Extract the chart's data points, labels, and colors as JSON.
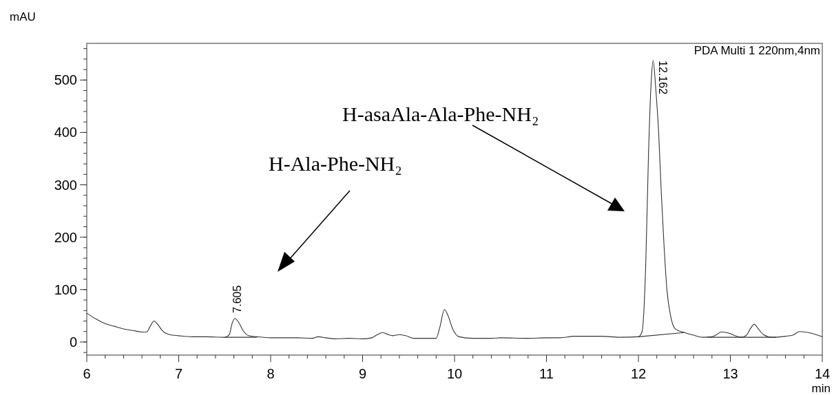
{
  "chart_data": {
    "type": "line",
    "xlabel": "min",
    "ylabel": "mAU",
    "xlim": [
      6,
      14
    ],
    "xticks": [
      6,
      7,
      8,
      9,
      10,
      11,
      12,
      13,
      14
    ],
    "ylim": [
      -25,
      570
    ],
    "yticks": [
      0,
      100,
      200,
      300,
      400,
      500
    ],
    "grid": false,
    "marker": "none",
    "line_style": "solid",
    "series": [
      {
        "color": "#333333",
        "x": [
          6,
          6.1,
          6.2,
          6.3,
          6.4,
          6.5,
          6.6,
          6.65,
          6.69,
          6.73,
          6.77,
          6.82,
          6.9,
          7.0,
          7.15,
          7.3,
          7.5,
          7.55,
          7.58,
          7.61,
          7.65,
          7.7,
          7.76,
          7.85,
          8.0,
          8.2,
          8.3,
          8.45,
          8.52,
          8.6,
          8.7,
          8.85,
          9.0,
          9.1,
          9.16,
          9.22,
          9.28,
          9.33,
          9.4,
          9.47,
          9.55,
          9.7,
          9.8,
          9.84,
          9.89,
          9.93,
          9.98,
          10.05,
          10.2,
          10.4,
          10.5,
          10.8,
          11.0,
          11.15,
          11.3,
          11.6,
          11.8,
          12.0,
          12.04,
          12.08,
          12.11,
          12.14,
          12.16,
          12.19,
          12.22,
          12.25,
          12.28,
          12.31,
          12.35,
          12.4,
          12.5,
          12.6,
          12.7,
          12.8,
          12.85,
          12.9,
          13.0,
          13.05,
          13.12,
          13.18,
          13.22,
          13.26,
          13.3,
          13.36,
          13.45,
          13.6,
          13.68,
          13.75,
          13.85,
          13.95,
          14.0
        ],
        "values": [
          55,
          44,
          35,
          30,
          25,
          22,
          19,
          19,
          30,
          40,
          34,
          22,
          14,
          12,
          10,
          10,
          9,
          14,
          35,
          45,
          38,
          22,
          12,
          10,
          8,
          8,
          8,
          7,
          10,
          8,
          6,
          7,
          6,
          8,
          14,
          18,
          14,
          12,
          14,
          12,
          7,
          7,
          7,
          28,
          62,
          50,
          25,
          10,
          7,
          7,
          8,
          7,
          8,
          8,
          11,
          11,
          9,
          10,
          20,
          150,
          360,
          500,
          537,
          480,
          400,
          280,
          180,
          100,
          50,
          25,
          18,
          13,
          9,
          10,
          14,
          19,
          16,
          12,
          9,
          14,
          26,
          34,
          26,
          14,
          9,
          11,
          13,
          20,
          18,
          13,
          10
        ]
      },
      {
        "color": "#333333",
        "x": [
          7.5,
          7.85
        ],
        "values": [
          9,
          9
        ]
      },
      {
        "color": "#333333",
        "x": [
          12.0,
          12.5
        ],
        "values": [
          10,
          18
        ]
      },
      {
        "color": "#333333",
        "x": [
          12.75,
          13.5
        ],
        "values": [
          9,
          9
        ]
      }
    ],
    "annotations": [
      {
        "text": "7.605",
        "x": 7.605,
        "y": 45
      },
      {
        "text": "12.162",
        "x": 12.162,
        "y": 537
      },
      "PDA Multi 1 220nm,4nm",
      "H-Ala-Phe-NH₂",
      "H-asaAla-Ala-Phe-NH₂"
    ]
  }
}
